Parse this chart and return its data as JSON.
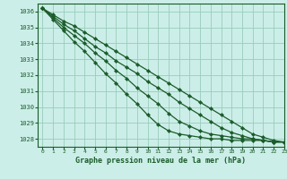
{
  "title": "Graphe pression niveau de la mer (hPa)",
  "bg_color": "#cceee8",
  "grid_color": "#99ccbb",
  "line_color": "#1a5c2a",
  "marker_color": "#1a5c2a",
  "xlim": [
    -0.5,
    23
  ],
  "ylim": [
    1027.5,
    1036.5
  ],
  "yticks": [
    1028,
    1029,
    1030,
    1031,
    1032,
    1033,
    1034,
    1035,
    1036
  ],
  "xticks": [
    0,
    1,
    2,
    3,
    4,
    5,
    6,
    7,
    8,
    9,
    10,
    11,
    12,
    13,
    14,
    15,
    16,
    17,
    18,
    19,
    20,
    21,
    22,
    23
  ],
  "series": [
    [
      1036.2,
      1035.8,
      1035.4,
      1035.1,
      1034.7,
      1034.3,
      1033.9,
      1033.5,
      1033.1,
      1032.7,
      1032.3,
      1031.9,
      1031.5,
      1031.1,
      1030.7,
      1030.3,
      1029.9,
      1029.5,
      1029.1,
      1028.7,
      1028.3,
      1028.1,
      1027.9,
      1027.8
    ],
    [
      1036.2,
      1035.7,
      1035.2,
      1034.8,
      1034.3,
      1033.8,
      1033.4,
      1032.9,
      1032.5,
      1032.1,
      1031.6,
      1031.2,
      1030.8,
      1030.3,
      1029.9,
      1029.5,
      1029.1,
      1028.7,
      1028.4,
      1028.2,
      1028.0,
      1027.9,
      1027.8,
      1027.8
    ],
    [
      1036.2,
      1035.6,
      1035.0,
      1034.5,
      1034.0,
      1033.4,
      1032.9,
      1032.3,
      1031.8,
      1031.2,
      1030.7,
      1030.2,
      1029.6,
      1029.1,
      1028.8,
      1028.5,
      1028.3,
      1028.2,
      1028.1,
      1028.0,
      1028.0,
      1027.9,
      1027.8,
      1027.8
    ],
    [
      1036.2,
      1035.5,
      1034.8,
      1034.1,
      1033.5,
      1032.8,
      1032.1,
      1031.5,
      1030.8,
      1030.2,
      1029.5,
      1028.9,
      1028.5,
      1028.3,
      1028.2,
      1028.1,
      1028.0,
      1028.0,
      1027.9,
      1027.9,
      1027.9,
      1027.9,
      1027.8,
      1027.8
    ]
  ]
}
